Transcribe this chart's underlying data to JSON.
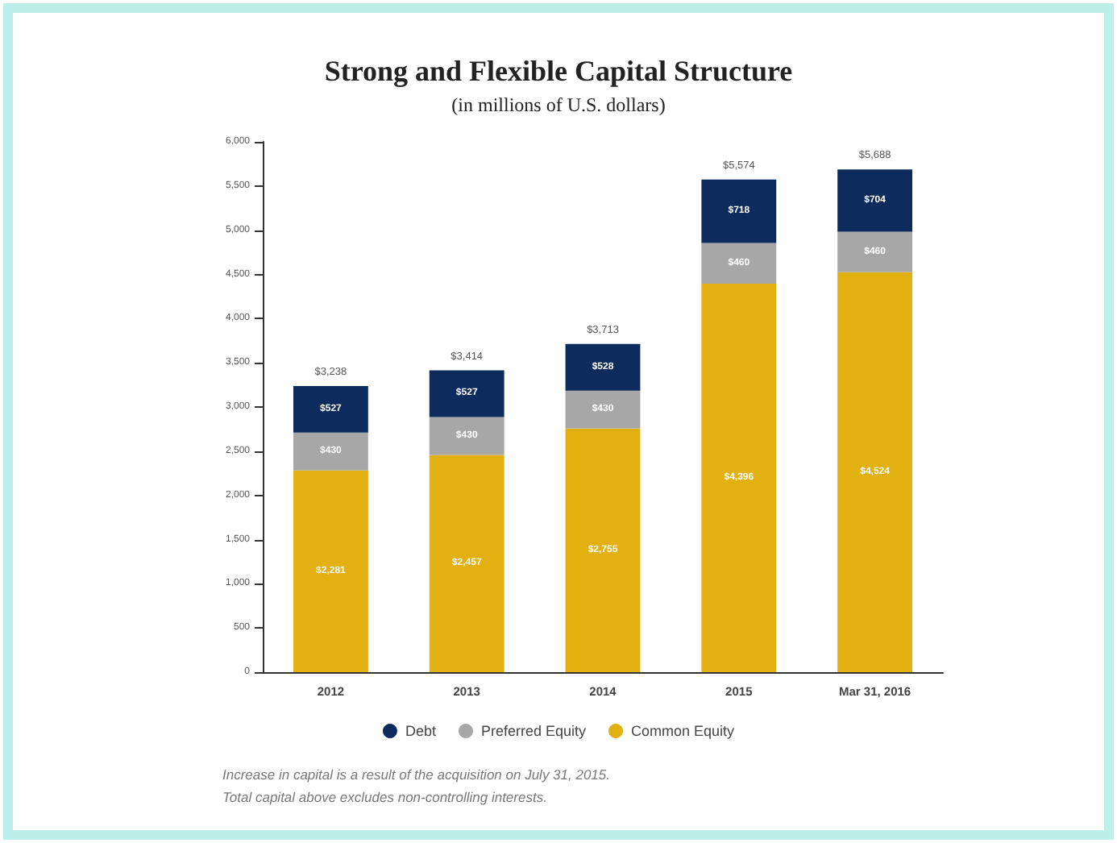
{
  "chart_data": {
    "type": "bar",
    "title": "Strong and Flexible Capital Structure",
    "subtitle": "(in millions of U.S. dollars)",
    "categories": [
      "2012",
      "2013",
      "2014",
      "2015",
      "Mar 31, 2016"
    ],
    "stacked": true,
    "series": [
      {
        "name": "Common Equity",
        "color": "#e3b011",
        "values": [
          2281,
          2457,
          2755,
          4396,
          4524
        ],
        "value_labels": [
          "$2,281",
          "$2,457",
          "$2,755",
          "$4,396",
          "$4,524"
        ]
      },
      {
        "name": "Preferred Equity",
        "color": "#a7a7a7",
        "values": [
          430,
          430,
          430,
          460,
          460
        ],
        "value_labels": [
          "$430",
          "$430",
          "$430",
          "$460",
          "$460"
        ]
      },
      {
        "name": "Debt",
        "color": "#0d2b5c",
        "values": [
          527,
          527,
          528,
          718,
          704
        ],
        "value_labels": [
          "$527",
          "$527",
          "$528",
          "$718",
          "$704"
        ]
      }
    ],
    "totals": [
      "$3,238",
      "$3,414",
      "$3,713",
      "$5,574",
      "$5,688"
    ],
    "ylim": [
      0,
      6000
    ],
    "yticks": [
      0,
      500,
      {
        "value": 1000,
        "label": "1,000"
      },
      {
        "value": 1500,
        "label": "1,500"
      },
      {
        "value": 2000,
        "label": "2,000"
      },
      {
        "value": 2500,
        "label": "2,500"
      },
      {
        "value": 3000,
        "label": "3,000"
      },
      {
        "value": 3500,
        "label": "3,500"
      },
      {
        "value": 4000,
        "label": "4,000"
      },
      {
        "value": 4500,
        "label": "4,500"
      },
      {
        "value": 5000,
        "label": "5,000"
      },
      {
        "value": 5500,
        "label": "5,500"
      },
      {
        "value": 6000,
        "label": "6,000"
      }
    ],
    "grid": false,
    "legend": "bottom",
    "annotations": [
      "Increase in capital is a result of the acquisition on July 31, 2015.",
      "Total capital above excludes non-controlling interests."
    ]
  }
}
